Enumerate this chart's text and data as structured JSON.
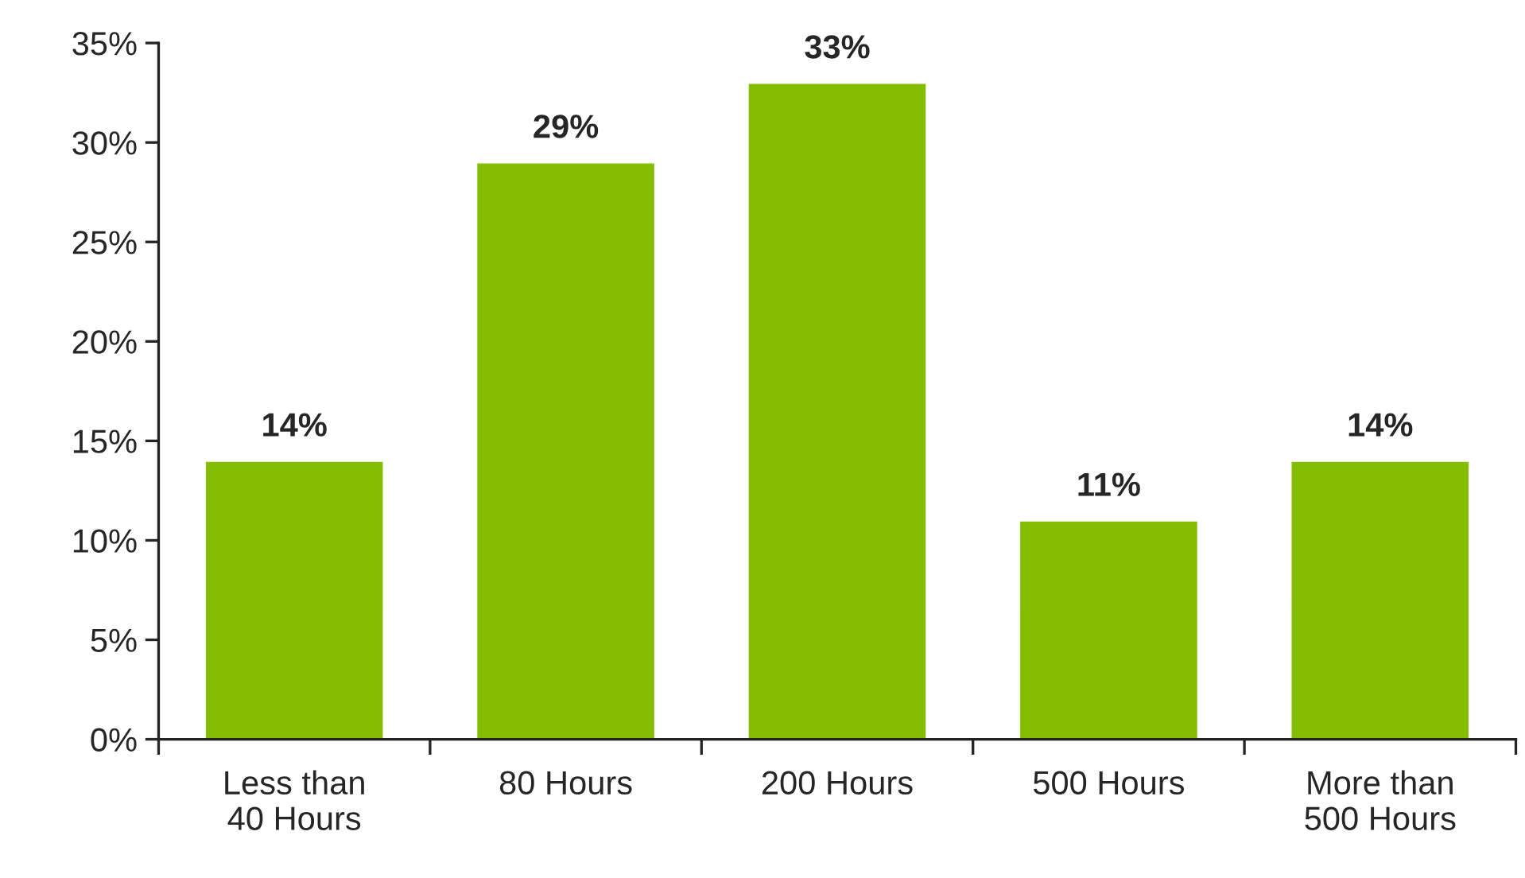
{
  "chart_data": {
    "type": "bar",
    "categories": [
      "Less than\n40 Hours",
      "80 Hours",
      "200 Hours",
      "500 Hours",
      "More than\n500 Hours"
    ],
    "values": [
      14,
      29,
      33,
      11,
      14
    ],
    "value_labels": [
      "14%",
      "29%",
      "33%",
      "11%",
      "14%"
    ],
    "color": "#84bc00",
    "ylim": [
      0,
      35
    ],
    "yticks": [
      {
        "value": 0,
        "label": "0%"
      },
      {
        "value": 5,
        "label": "5%"
      },
      {
        "value": 10,
        "label": "10%"
      },
      {
        "value": 15,
        "label": "15%"
      },
      {
        "value": 20,
        "label": "20%"
      },
      {
        "value": 25,
        "label": "25%"
      },
      {
        "value": 30,
        "label": "30%"
      },
      {
        "value": 35,
        "label": "35%"
      }
    ],
    "grid": false,
    "legend": false
  }
}
